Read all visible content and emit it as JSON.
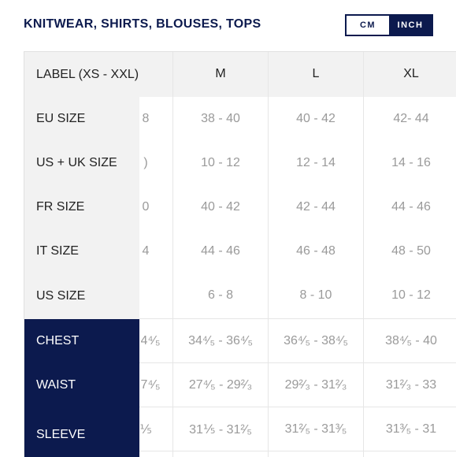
{
  "title": "KNITWEAR, SHIRTS, BLOUSES, TOPS",
  "units": [
    "CM",
    "INCH"
  ],
  "table": {
    "header_label": "LABEL (XS - XXL)",
    "columns": [
      "M",
      "L",
      "XL"
    ],
    "rows": [
      {
        "label": "EU SIZE",
        "partial": "8",
        "values": [
          "38 - 40",
          "40 - 42",
          "42- 44"
        ]
      },
      {
        "label": "US + UK SIZE",
        "partial": ")",
        "values": [
          "10 - 12",
          "12 - 14",
          "14 - 16"
        ]
      },
      {
        "label": "FR SIZE",
        "partial": "0",
        "values": [
          "40 - 42",
          "42 - 44",
          "44 - 46"
        ]
      },
      {
        "label": "IT SIZE",
        "partial": "4",
        "values": [
          "44 - 46",
          "46 - 48",
          "48 - 50"
        ]
      },
      {
        "label": "US SIZE",
        "partial": "",
        "values": [
          "6 - 8",
          "8 - 10",
          "10 - 12"
        ]
      },
      {
        "label": "CHEST",
        "partial": "4⁴⁄₅",
        "values": [
          "34⁴⁄₅ - 36⁴⁄₅",
          "36⁴⁄₅ - 38⁴⁄₅",
          "38⁴⁄₅ - 40"
        ]
      },
      {
        "label": "WAIST",
        "partial": "7⁴⁄₅",
        "values": [
          "27⁴⁄₅ - 29²⁄₃",
          "29²⁄₃ - 31²⁄₃",
          "31²⁄₃ - 33"
        ]
      },
      {
        "label": "SLEEVE",
        "partial": "⅕",
        "values": [
          "31⅕ - 31²⁄₅",
          "31²⁄₅ - 31³⁄₅",
          "31³⁄₅ - 31"
        ]
      }
    ]
  }
}
